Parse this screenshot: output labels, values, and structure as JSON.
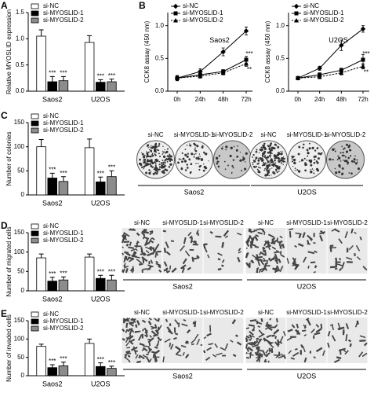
{
  "chart_data": [
    {
      "type": "bar",
      "panel": "A",
      "ylabel": "Relative MYOSLID expression",
      "categories": [
        "Saos2",
        "U2OS"
      ],
      "series": [
        {
          "name": "si-NC",
          "color": "#ffffff",
          "values": [
            1.05,
            0.93
          ],
          "errors": [
            0.12,
            0.13
          ]
        },
        {
          "name": "si-MYOSLID-1",
          "color": "#000000",
          "values": [
            0.18,
            0.17
          ],
          "errors": [
            0.1,
            0.05
          ],
          "marks": [
            "***",
            "***"
          ]
        },
        {
          "name": "si-MYOSLID-2",
          "color": "#8c8c8c",
          "values": [
            0.2,
            0.18
          ],
          "errors": [
            0.08,
            0.05
          ],
          "marks": [
            "***",
            "***"
          ]
        }
      ],
      "ylim": [
        0,
        1.5
      ],
      "yticks": [
        {
          "value": 0,
          "label": "0.0"
        },
        0.5,
        {
          "value": 1,
          "label": "1.0"
        },
        1.5
      ]
    },
    {
      "type": "line",
      "panel": "B",
      "subtitle": "Saos2",
      "ylabel": "CCK8 assay (450 nm)",
      "categories": [
        "0h",
        "24h",
        "48h",
        "72h"
      ],
      "series": [
        {
          "name": "si-NC",
          "color": "#000000",
          "marker": "diamond",
          "values": [
            0.2,
            0.3,
            0.6,
            0.92
          ],
          "errors": [
            0.04,
            0.04,
            0.06,
            0.06
          ]
        },
        {
          "name": "si-MYOSLID-1",
          "color": "#000000",
          "marker": "square",
          "values": [
            0.2,
            0.25,
            0.3,
            0.48
          ],
          "errors": [
            0.03,
            0.03,
            0.03,
            0.05
          ],
          "marks": [
            null,
            null,
            null,
            "***"
          ]
        },
        {
          "name": "si-MYOSLID-2",
          "color": "#000000",
          "marker": "triangle",
          "dashed": true,
          "values": [
            0.2,
            0.23,
            0.28,
            0.42
          ],
          "errors": [
            0.03,
            0.03,
            0.03,
            0.04
          ],
          "marks": [
            null,
            null,
            null,
            "**"
          ]
        }
      ],
      "ylim": [
        0,
        1.2
      ],
      "yticks": [
        {
          "value": 0,
          "label": "0.0"
        },
        0.5,
        {
          "value": 1,
          "label": "1.0"
        }
      ]
    },
    {
      "type": "line",
      "subtitle": "U2OS",
      "ylabel": "CCK8 assay (450 nm)",
      "categories": [
        "0h",
        "24h",
        "48h",
        "72h"
      ],
      "series": [
        {
          "name": "si-NC",
          "color": "#000000",
          "marker": "diamond",
          "values": [
            0.2,
            0.35,
            0.7,
            0.95
          ],
          "errors": [
            0.02,
            0.03,
            0.08,
            0.05
          ]
        },
        {
          "name": "si-MYOSLID-1",
          "color": "#000000",
          "marker": "square",
          "values": [
            0.2,
            0.25,
            0.32,
            0.48
          ],
          "errors": [
            0.02,
            0.03,
            0.03,
            0.08
          ],
          "marks": [
            null,
            null,
            null,
            "***"
          ]
        },
        {
          "name": "si-MYOSLID-2",
          "color": "#000000",
          "marker": "triangle",
          "dashed": true,
          "values": [
            0.2,
            0.22,
            0.28,
            0.38
          ],
          "errors": [
            0.02,
            0.03,
            0.03,
            0.04
          ],
          "marks": [
            null,
            null,
            null,
            "**"
          ]
        }
      ],
      "ylim": [
        0,
        1.2
      ],
      "yticks": [
        {
          "value": 0,
          "label": "0.0"
        },
        0.5,
        {
          "value": 1,
          "label": "1.0"
        }
      ]
    },
    {
      "type": "bar",
      "panel": "C",
      "ylabel": "Number of colonies",
      "categories": [
        "Saos2",
        "U2OS"
      ],
      "series": [
        {
          "name": "si-NC",
          "color": "#ffffff",
          "values": [
            100,
            98
          ],
          "errors": [
            15,
            18
          ]
        },
        {
          "name": "si-MYOSLID-1",
          "color": "#000000",
          "values": [
            35,
            27
          ],
          "errors": [
            10,
            10
          ],
          "marks": [
            "***",
            "***"
          ]
        },
        {
          "name": "si-MYOSLID-2",
          "color": "#8c8c8c",
          "values": [
            28,
            38
          ],
          "errors": [
            10,
            12
          ],
          "marks": [
            "***",
            "***"
          ]
        }
      ],
      "ylim": [
        0,
        150
      ],
      "yticks": [
        0,
        50,
        100,
        150
      ]
    },
    {
      "type": "bar",
      "panel": "D",
      "ylabel": "Number of migrated cells",
      "categories": [
        "Saos2",
        "U2OS"
      ],
      "series": [
        {
          "name": "si-NC",
          "color": "#ffffff",
          "values": [
            85,
            87
          ],
          "errors": [
            10,
            8
          ]
        },
        {
          "name": "si-MYOSLID-1",
          "color": "#000000",
          "values": [
            25,
            32
          ],
          "errors": [
            10,
            8
          ],
          "marks": [
            "***",
            "***"
          ]
        },
        {
          "name": "si-MYOSLID-2",
          "color": "#8c8c8c",
          "values": [
            28,
            28
          ],
          "errors": [
            8,
            12
          ],
          "marks": [
            "***",
            "***"
          ]
        }
      ],
      "ylim": [
        0,
        150
      ],
      "yticks": [
        0,
        50,
        100,
        150
      ]
    },
    {
      "type": "bar",
      "panel": "E",
      "ylabel": "Number of invaded cells",
      "categories": [
        "Saos2",
        "U2OS"
      ],
      "series": [
        {
          "name": "si-NC",
          "color": "#ffffff",
          "values": [
            80,
            88
          ],
          "errors": [
            6,
            12
          ]
        },
        {
          "name": "si-MYOSLID-1",
          "color": "#000000",
          "values": [
            22,
            25
          ],
          "errors": [
            8,
            10
          ],
          "marks": [
            "***",
            "***"
          ]
        },
        {
          "name": "si-MYOSLID-2",
          "color": "#8c8c8c",
          "values": [
            27,
            20
          ],
          "errors": [
            10,
            6
          ],
          "marks": [
            "***",
            "***"
          ]
        }
      ],
      "ylim": [
        0,
        150
      ],
      "yticks": [
        0,
        50,
        100,
        150
      ]
    }
  ],
  "images": [
    {
      "style": "plate",
      "groups": [
        {
          "name": "Saos2",
          "labels": [
            "si-NC",
            "si-MYOSLID-1",
            "si-MYOSLID-2"
          ]
        },
        {
          "name": "U2OS",
          "labels": [
            "si-NC",
            "si-MYOSLID-1",
            "si-MYOSLID-2"
          ]
        }
      ]
    },
    {
      "style": "micrograph",
      "groups": [
        {
          "name": "Saos2",
          "labels": [
            "si-NC",
            "si-MYOSLID-1",
            "si-MYOSLID-2"
          ]
        },
        {
          "name": "U2OS",
          "labels": [
            "si-NC",
            "si-MYOSLID-1",
            "si-MYOSLID-2"
          ]
        }
      ]
    },
    {
      "style": "micrograph",
      "groups": [
        {
          "name": "Saos2",
          "labels": [
            "si-NC",
            "si-MYOSLID-1",
            "si-MYOSLID-2"
          ]
        },
        {
          "name": "U2OS",
          "labels": [
            "si-NC",
            "si-MYOSLID-1",
            "si-MYOSLID-2"
          ]
        }
      ]
    }
  ]
}
